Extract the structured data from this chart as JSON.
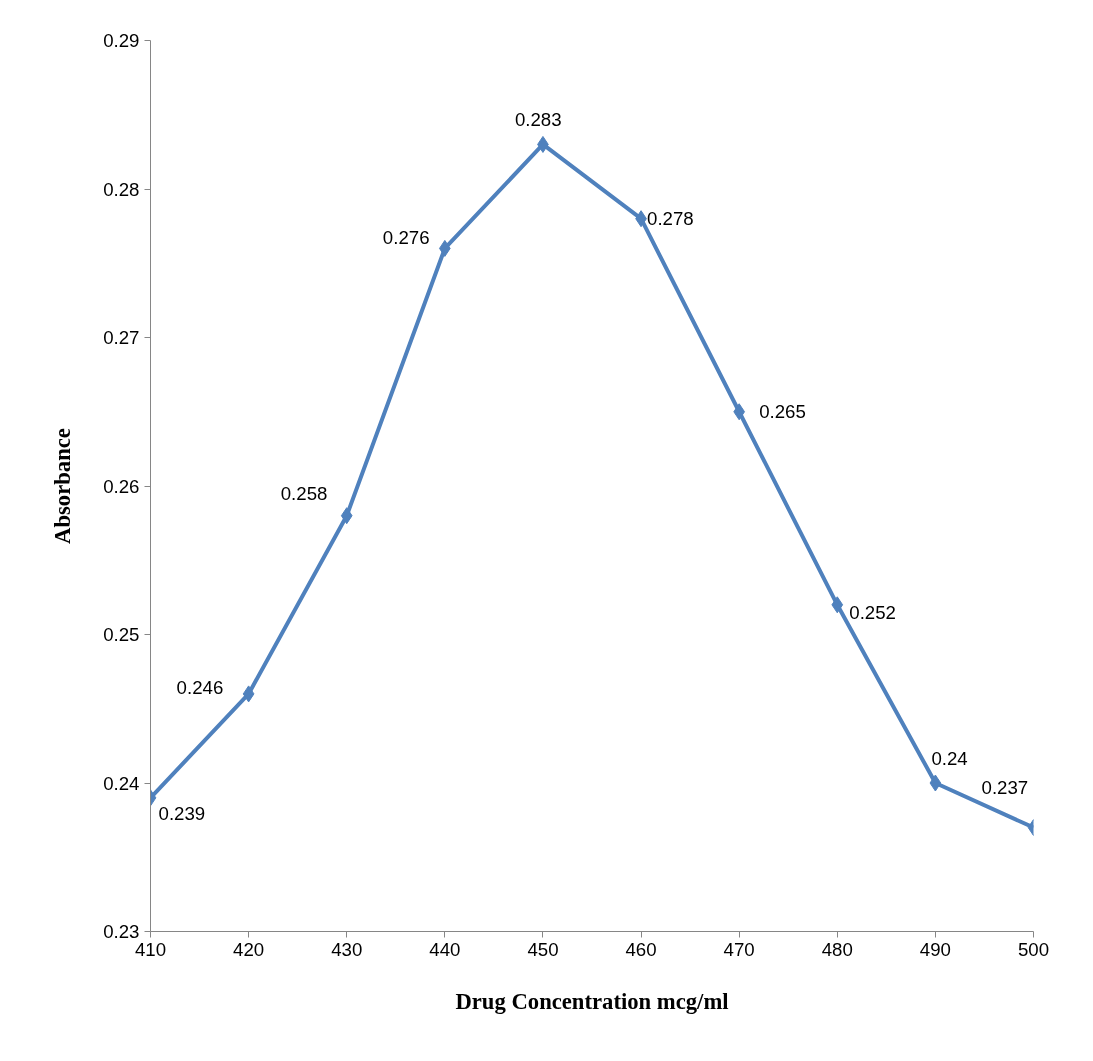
{
  "chart_data": {
    "type": "line",
    "xlabel": "Drug Concentration mcg/ml",
    "ylabel": "Absorbance",
    "x": [
      410,
      420,
      430,
      440,
      450,
      460,
      470,
      480,
      490,
      500
    ],
    "series": [
      {
        "color": "#4f81bd",
        "values": [
          0.239,
          0.246,
          0.258,
          0.276,
          0.283,
          0.278,
          0.265,
          0.252,
          0.24,
          0.237
        ]
      }
    ],
    "xlim": [
      410,
      500
    ],
    "ylim": [
      0.23,
      0.29
    ],
    "xticks": [
      410,
      420,
      430,
      440,
      450,
      460,
      470,
      480,
      490,
      500
    ],
    "yticks": [
      0.23,
      0.24,
      0.25,
      0.26,
      0.27,
      0.28,
      0.29
    ],
    "marker": "diamond",
    "line_style": "solid",
    "grid": false,
    "data_labels": true
  }
}
